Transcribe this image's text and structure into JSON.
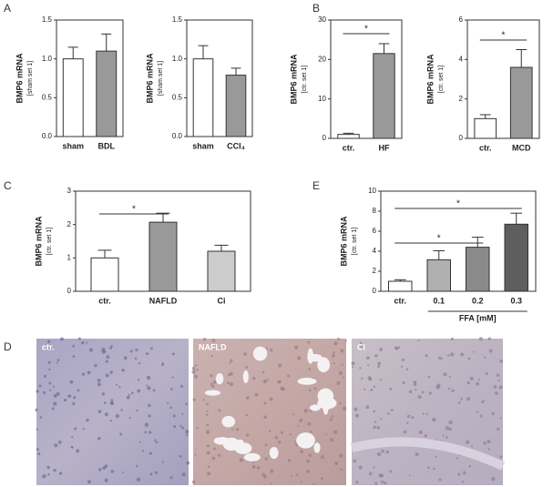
{
  "panel_labels": [
    "A",
    "B",
    "C",
    "E",
    "D"
  ],
  "chart_data": [
    {
      "type": "bar",
      "ylabel": "BMP6 mRNA",
      "ylabel_sub": "[sham set 1]",
      "categories": [
        "sham",
        "BDL"
      ],
      "values": [
        1.0,
        1.1
      ],
      "errors": [
        0.15,
        0.22
      ],
      "colors": [
        "#ffffff",
        "#999999"
      ],
      "ylim": [
        0,
        1.5
      ],
      "yticks": [
        {
          "value": 0,
          "label": "0.0"
        },
        {
          "value": 0.5,
          "label": "0.5"
        },
        {
          "value": 1,
          "label": "1.0"
        },
        {
          "value": 1.5,
          "label": "1.5"
        }
      ],
      "annotations": []
    },
    {
      "type": "bar",
      "ylabel": "BMP6 mRNA",
      "ylabel_sub": "[sham set 1]",
      "categories": [
        "sham",
        "CCl₄"
      ],
      "values": [
        1.0,
        0.79
      ],
      "errors": [
        0.17,
        0.09
      ],
      "colors": [
        "#ffffff",
        "#999999"
      ],
      "ylim": [
        0,
        1.5
      ],
      "yticks": [
        {
          "value": 0,
          "label": "0.0"
        },
        {
          "value": 0.5,
          "label": "0.5"
        },
        {
          "value": 1,
          "label": "1.0"
        },
        {
          "value": 1.5,
          "label": "1.5"
        }
      ],
      "annotations": []
    },
    {
      "type": "bar",
      "ylabel": "BMP6 mRNA",
      "ylabel_sub": "[ctr. set 1]",
      "categories": [
        "ctr.",
        "HF"
      ],
      "values": [
        1,
        21.5
      ],
      "errors": [
        0.3,
        2.5
      ],
      "colors": [
        "#ffffff",
        "#999999"
      ],
      "ylim": [
        0,
        30
      ],
      "yticks": [
        0,
        10,
        20,
        30
      ],
      "annotations": [
        "*"
      ]
    },
    {
      "type": "bar",
      "ylabel": "BMP6 mRNA",
      "ylabel_sub": "[ctr. set 1]",
      "categories": [
        "ctr.",
        "MCD"
      ],
      "values": [
        1.0,
        3.6
      ],
      "errors": [
        0.2,
        0.9
      ],
      "colors": [
        "#ffffff",
        "#999999"
      ],
      "ylim": [
        0,
        6
      ],
      "yticks": [
        0,
        2,
        4,
        6
      ],
      "annotations": [
        "*"
      ]
    },
    {
      "type": "bar",
      "ylabel": "BMP6 mRNA",
      "ylabel_sub": "[ctr. set 1]",
      "categories": [
        "ctr.",
        "NAFLD",
        "Ci"
      ],
      "values": [
        1.0,
        2.07,
        1.2
      ],
      "errors": [
        0.23,
        0.27,
        0.18
      ],
      "colors": [
        "#ffffff",
        "#999999",
        "#cccccc"
      ],
      "ylim": [
        0,
        3
      ],
      "yticks": [
        0,
        1,
        2,
        3
      ],
      "annotations": [
        "*"
      ]
    },
    {
      "type": "bar",
      "ylabel": "BMP6 mRNA",
      "ylabel_sub": "[ctr. set 1]",
      "xlabel": "FFA [mM]",
      "categories": [
        "ctr.",
        "0.1",
        "0.2",
        "0.3"
      ],
      "values": [
        1.0,
        3.15,
        4.4,
        6.7
      ],
      "errors": [
        0.15,
        0.9,
        1.0,
        1.1
      ],
      "colors": [
        "#ffffff",
        "#b0b0b0",
        "#8a8a8a",
        "#5e5e5e"
      ],
      "ylim": [
        0,
        10
      ],
      "yticks": [
        0,
        2,
        4,
        6,
        8,
        10
      ],
      "annotations": [
        "*",
        "*"
      ]
    }
  ],
  "images": [
    {
      "label": "ctr."
    },
    {
      "label": "NAFLD"
    },
    {
      "label": "Ci"
    }
  ]
}
